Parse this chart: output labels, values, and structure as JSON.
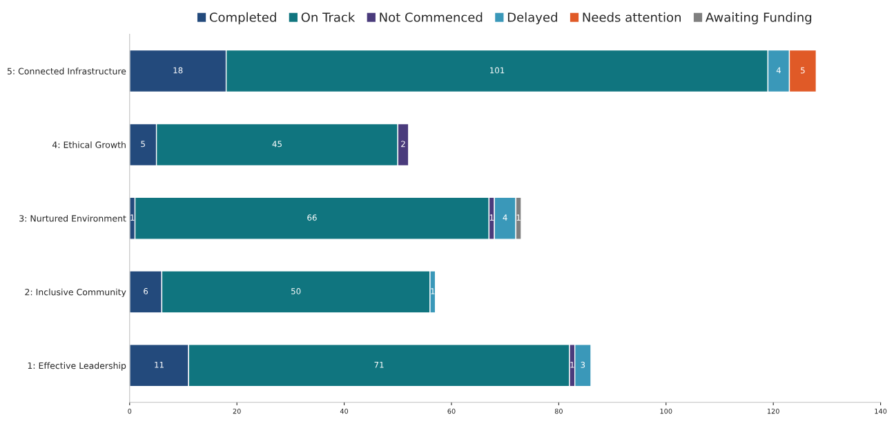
{
  "chart_data": {
    "type": "bar",
    "orientation": "horizontal",
    "stacked": true,
    "data_labels": true,
    "grid": false,
    "legend": "top",
    "categories": [
      "5: Connected Infrastructure",
      "4: Ethical Growth",
      "3: Nurtured Environment",
      "2: Inclusive Community",
      "1: Effective Leadership"
    ],
    "series": [
      {
        "name": "Completed",
        "color": "#234a7c",
        "values": [
          18,
          5,
          1,
          6,
          11
        ]
      },
      {
        "name": "On Track",
        "color": "#10757f",
        "values": [
          101,
          45,
          66,
          50,
          71
        ]
      },
      {
        "name": "Not Commenced",
        "color": "#4a3b7c",
        "values": [
          null,
          2,
          1,
          null,
          1
        ]
      },
      {
        "name": "Delayed",
        "color": "#3a98b9",
        "values": [
          4,
          null,
          4,
          1,
          3
        ]
      },
      {
        "name": "Needs attention",
        "color": "#e05a27",
        "values": [
          5,
          null,
          null,
          null,
          null
        ]
      },
      {
        "name": "Awaiting Funding",
        "color": "#7f7f7f",
        "values": [
          null,
          null,
          1,
          null,
          null
        ]
      }
    ],
    "xlim": [
      0,
      140
    ],
    "xticks": [
      0,
      20,
      40,
      60,
      80,
      100,
      120,
      140
    ]
  }
}
